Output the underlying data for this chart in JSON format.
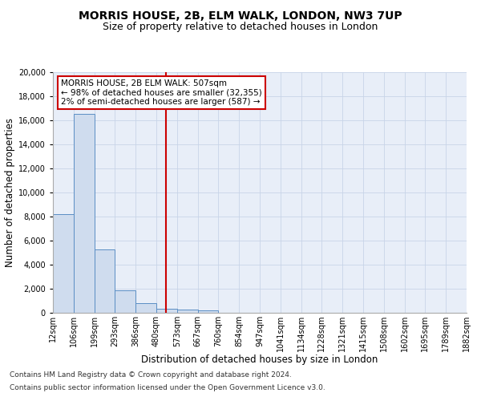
{
  "title": "MORRIS HOUSE, 2B, ELM WALK, LONDON, NW3 7UP",
  "subtitle": "Size of property relative to detached houses in London",
  "bar_values": [
    8200,
    16500,
    5300,
    1850,
    800,
    350,
    300,
    200,
    0,
    0,
    0,
    0,
    0,
    0,
    0,
    0,
    0,
    0,
    0,
    0
  ],
  "bin_labels": [
    "12sqm",
    "106sqm",
    "199sqm",
    "293sqm",
    "386sqm",
    "480sqm",
    "573sqm",
    "667sqm",
    "760sqm",
    "854sqm",
    "947sqm",
    "1041sqm",
    "1134sqm",
    "1228sqm",
    "1321sqm",
    "1415sqm",
    "1508sqm",
    "1602sqm",
    "1695sqm",
    "1789sqm",
    "1882sqm"
  ],
  "bar_color": "#cfdcee",
  "bar_edge_color": "#5b8ec4",
  "bar_linewidth": 0.7,
  "vline_x": 5.48,
  "vline_color": "#cc0000",
  "vline_linewidth": 1.5,
  "xlabel": "Distribution of detached houses by size in London",
  "ylabel": "Number of detached properties",
  "ylim": [
    0,
    20000
  ],
  "yticks": [
    0,
    2000,
    4000,
    6000,
    8000,
    10000,
    12000,
    14000,
    16000,
    18000,
    20000
  ],
  "legend_title_line": "MORRIS HOUSE, 2B ELM WALK: 507sqm",
  "legend_line1": "← 98% of detached houses are smaller (32,355)",
  "legend_line2": "2% of semi-detached houses are larger (587) →",
  "grid_color": "#c8d4e8",
  "bg_color": "#e8eef8",
  "footnote1": "Contains HM Land Registry data © Crown copyright and database right 2024.",
  "footnote2": "Contains public sector information licensed under the Open Government Licence v3.0.",
  "title_fontsize": 10,
  "subtitle_fontsize": 9,
  "axis_label_fontsize": 8.5,
  "tick_fontsize": 7,
  "legend_fontsize": 7.5,
  "footnote_fontsize": 6.5
}
